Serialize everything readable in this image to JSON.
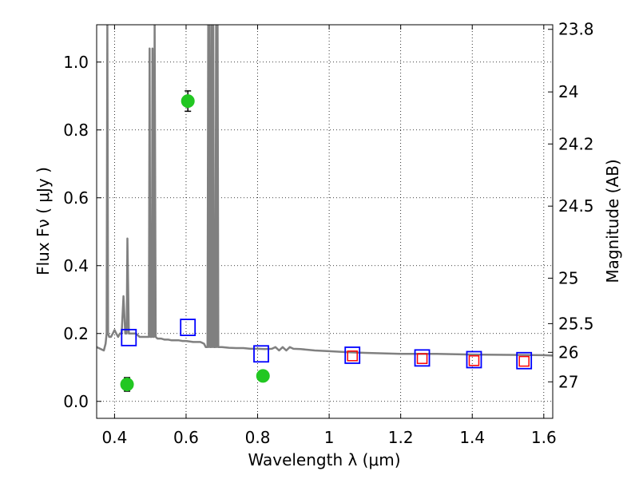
{
  "chart_data": {
    "type": "scatter",
    "xlabel": "Wavelength  λ (μm)",
    "ylabel": "Flux  Fν  ( μJy )",
    "y2label": "Magnitude (AB)",
    "xlim": [
      0.35,
      1.625
    ],
    "ylim": [
      -0.05,
      1.11
    ],
    "grid": true,
    "xticks": [
      {
        "value": 0.4,
        "label": "0.4"
      },
      {
        "value": 0.6,
        "label": "0.6"
      },
      {
        "value": 0.8,
        "label": "0.8"
      },
      {
        "value": 1.0,
        "label": "1"
      },
      {
        "value": 1.2,
        "label": "1.2"
      },
      {
        "value": 1.4,
        "label": "1.4"
      },
      {
        "value": 1.6,
        "label": "1.6"
      }
    ],
    "yticks": [
      {
        "value": 0.0,
        "label": "0.0"
      },
      {
        "value": 0.2,
        "label": "0.2"
      },
      {
        "value": 0.4,
        "label": "0.4"
      },
      {
        "value": 0.6,
        "label": "0.6"
      },
      {
        "value": 0.8,
        "label": "0.8"
      },
      {
        "value": 1.0,
        "label": "1.0"
      }
    ],
    "y2ticks": [
      {
        "value": 23.8,
        "label": "23.8"
      },
      {
        "value": 24.0,
        "label": "24"
      },
      {
        "value": 24.2,
        "label": "24.2"
      },
      {
        "value": 24.5,
        "label": "24.5"
      },
      {
        "value": 25.0,
        "label": "25"
      },
      {
        "value": 25.5,
        "label": "25.5"
      },
      {
        "value": 26.0,
        "label": "26"
      },
      {
        "value": 27.0,
        "label": "27"
      }
    ],
    "series": [
      {
        "kind": "model_spectrum",
        "color": "#808080",
        "x": [
          0.35,
          0.36,
          0.37,
          0.375,
          0.378,
          0.38,
          0.382,
          0.385,
          0.39,
          0.395,
          0.4,
          0.405,
          0.41,
          0.415,
          0.42,
          0.425,
          0.43,
          0.434,
          0.436,
          0.44,
          0.45,
          0.46,
          0.47,
          0.48,
          0.49,
          0.496,
          0.498,
          0.5,
          0.502,
          0.504,
          0.506,
          0.508,
          0.51,
          0.512,
          0.515,
          0.52,
          0.53,
          0.54,
          0.55,
          0.56,
          0.57,
          0.58,
          0.59,
          0.6,
          0.62,
          0.64,
          0.65,
          0.655,
          0.66,
          0.662,
          0.664,
          0.666,
          0.668,
          0.67,
          0.672,
          0.674,
          0.676,
          0.678,
          0.68,
          0.682,
          0.684,
          0.686,
          0.688,
          0.69,
          0.7,
          0.72,
          0.74,
          0.76,
          0.78,
          0.8,
          0.82,
          0.84,
          0.85,
          0.86,
          0.87,
          0.88,
          0.89,
          0.9,
          0.92,
          0.94,
          0.96,
          1.0,
          1.05,
          1.1,
          1.2,
          1.3,
          1.4,
          1.5,
          1.6,
          1.625
        ],
        "y": [
          0.16,
          0.155,
          0.15,
          0.17,
          0.2,
          1.12,
          0.2,
          0.19,
          0.19,
          0.2,
          0.21,
          0.2,
          0.19,
          0.2,
          0.2,
          0.31,
          0.2,
          0.2,
          0.48,
          0.2,
          0.2,
          0.2,
          0.19,
          0.19,
          0.19,
          0.19,
          1.04,
          0.19,
          0.19,
          0.19,
          1.04,
          0.19,
          0.19,
          1.12,
          0.19,
          0.185,
          0.185,
          0.182,
          0.182,
          0.18,
          0.18,
          0.18,
          0.178,
          0.178,
          0.175,
          0.175,
          0.17,
          0.16,
          0.16,
          1.12,
          0.16,
          1.12,
          0.16,
          0.16,
          1.12,
          0.16,
          1.12,
          0.16,
          0.16,
          0.16,
          1.12,
          0.16,
          1.12,
          0.16,
          0.16,
          0.158,
          0.157,
          0.157,
          0.155,
          0.155,
          0.154,
          0.155,
          0.16,
          0.15,
          0.16,
          0.15,
          0.16,
          0.155,
          0.154,
          0.152,
          0.15,
          0.148,
          0.145,
          0.143,
          0.14,
          0.14,
          0.138,
          0.137,
          0.136,
          0.135
        ]
      },
      {
        "kind": "observed",
        "name": "",
        "color": "#22c722",
        "points": [
          {
            "x": 0.435,
            "y": 0.05,
            "err": 0.02
          },
          {
            "x": 0.605,
            "y": 0.885,
            "err": 0.03
          },
          {
            "x": 0.815,
            "y": 0.075,
            "err": 0.01
          }
        ]
      },
      {
        "kind": "model_blue",
        "color": "#0000ff",
        "points": [
          {
            "x": 0.44,
            "y": 0.188
          },
          {
            "x": 0.605,
            "y": 0.218
          },
          {
            "x": 0.81,
            "y": 0.14
          },
          {
            "x": 1.065,
            "y": 0.136
          },
          {
            "x": 1.26,
            "y": 0.128
          },
          {
            "x": 1.405,
            "y": 0.123
          },
          {
            "x": 1.545,
            "y": 0.12
          }
        ]
      },
      {
        "kind": "model_red",
        "color": "#ff0000",
        "points": [
          {
            "x": 1.065,
            "y": 0.134
          },
          {
            "x": 1.26,
            "y": 0.126
          },
          {
            "x": 1.405,
            "y": 0.12
          },
          {
            "x": 1.545,
            "y": 0.118
          }
        ]
      }
    ]
  }
}
